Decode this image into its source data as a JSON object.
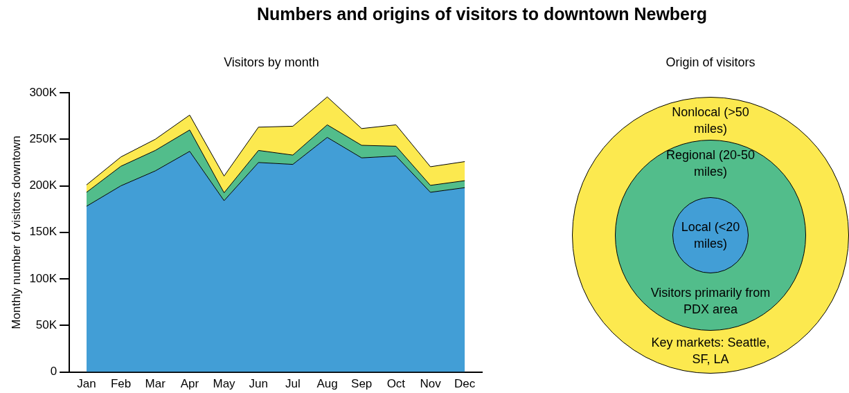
{
  "chart_data": {
    "type": "area",
    "title": "Numbers and origins of visitors to downtown Newberg",
    "subtitle": "Visitors by month",
    "ylabel": "Monthly number of visitors downtown",
    "legend_title": "Origin of visitors",
    "categories": [
      "Jan",
      "Feb",
      "Mar",
      "Apr",
      "May",
      "Jun",
      "Jul",
      "Aug",
      "Sep",
      "Oct",
      "Nov",
      "Dec"
    ],
    "stacked": true,
    "series": [
      {
        "name": "Local (<20 miles)",
        "color": "#429ed6",
        "values": [
          178000,
          200000,
          216000,
          237000,
          184000,
          225000,
          223000,
          252000,
          230000,
          232000,
          193000,
          198000
        ]
      },
      {
        "name": "Regional (20-50 miles)",
        "color": "#52bd8b",
        "values": [
          15000,
          21000,
          22000,
          23000,
          8500,
          13000,
          10000,
          13500,
          13500,
          10500,
          7500,
          7500
        ]
      },
      {
        "name": "Nonlocal (>50 miles)",
        "color": "#fce94f",
        "values": [
          8000,
          10000,
          12000,
          16000,
          18000,
          25000,
          31000,
          30000,
          18000,
          23000,
          20000,
          20500
        ]
      }
    ],
    "ylim": [
      0,
      300000
    ],
    "yticks": [
      {
        "value": 0,
        "label": "0"
      },
      {
        "value": 50000,
        "label": "50K"
      },
      {
        "value": 100000,
        "label": "100K"
      },
      {
        "value": 150000,
        "label": "150K"
      },
      {
        "value": 200000,
        "label": "200K"
      },
      {
        "value": 250000,
        "label": "250K"
      },
      {
        "value": 300000,
        "label": "300K"
      }
    ],
    "grid": false,
    "legend": "right",
    "annotations": [
      "Visitors primarily from PDX area",
      "Key markets: Seattle, SF, LA"
    ]
  }
}
